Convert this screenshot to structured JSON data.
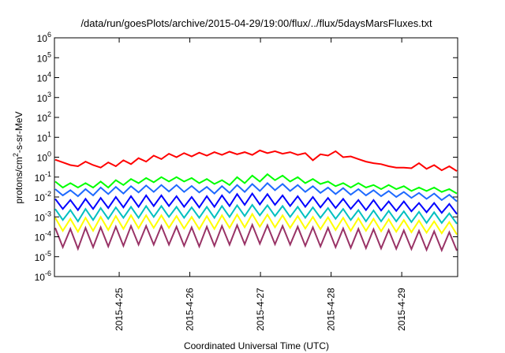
{
  "chart_data": {
    "type": "line",
    "title": "/data/run/goesPlots/archive/2015-04-29/19:00/flux/../flux/5daysMarsFluxes.txt",
    "xlabel": "Coordinated Universal Time (UTC)",
    "ylabel": "protons/cm²-s-sr-MeV",
    "ylabel_parts": {
      "pre": "protons/cm",
      "sup": "2",
      "post": "-s-sr-MeV"
    },
    "x_range": [
      "2015-04-24T02:00",
      "2015-04-29T19:00"
    ],
    "x_ticks": [
      "2015-4-25",
      "2015-4-26",
      "2015-4-27",
      "2015-4-28",
      "2015-4-29"
    ],
    "y_scale": "log",
    "ylim": [
      1e-06,
      1000000.0
    ],
    "y_ticks": [
      {
        "base": "10",
        "exp": "-6"
      },
      {
        "base": "10",
        "exp": "-5"
      },
      {
        "base": "10",
        "exp": "-4"
      },
      {
        "base": "10",
        "exp": "-3"
      },
      {
        "base": "10",
        "exp": "-2"
      },
      {
        "base": "10",
        "exp": "-1"
      },
      {
        "base": "10",
        "exp": "0"
      },
      {
        "base": "10",
        "exp": "1"
      },
      {
        "base": "10",
        "exp": "2"
      },
      {
        "base": "10",
        "exp": "3"
      },
      {
        "base": "10",
        "exp": "4"
      },
      {
        "base": "10",
        "exp": "5"
      },
      {
        "base": "10",
        "exp": "6"
      }
    ],
    "grid": false,
    "series": [
      {
        "color": "#ff0000",
        "values": [
          0.75,
          0.55,
          0.4,
          0.35,
          0.6,
          0.4,
          0.3,
          0.55,
          0.35,
          0.7,
          0.45,
          0.9,
          0.6,
          1.2,
          0.8,
          1.5,
          1.0,
          1.6,
          1.1,
          1.7,
          1.2,
          1.8,
          1.3,
          1.9,
          1.4,
          1.8,
          1.3,
          2.2,
          1.6,
          2.0,
          1.5,
          1.8,
          1.3,
          1.6,
          0.7,
          1.4,
          1.2,
          2.0,
          1.0,
          1.1,
          0.8,
          0.6,
          0.5,
          0.45,
          0.35,
          0.3,
          0.3,
          0.28,
          0.5,
          0.26,
          0.4,
          0.22,
          0.35,
          0.2
        ]
      },
      {
        "color": "#00ff00",
        "values": [
          0.06,
          0.03,
          0.05,
          0.03,
          0.05,
          0.03,
          0.06,
          0.03,
          0.07,
          0.04,
          0.08,
          0.05,
          0.09,
          0.055,
          0.1,
          0.06,
          0.1,
          0.06,
          0.09,
          0.05,
          0.08,
          0.045,
          0.07,
          0.04,
          0.1,
          0.05,
          0.12,
          0.06,
          0.14,
          0.07,
          0.12,
          0.06,
          0.1,
          0.05,
          0.08,
          0.045,
          0.06,
          0.035,
          0.05,
          0.03,
          0.05,
          0.03,
          0.04,
          0.025,
          0.04,
          0.025,
          0.035,
          0.02,
          0.03,
          0.02,
          0.03,
          0.018,
          0.025,
          0.015
        ]
      },
      {
        "color": "#1e6aff",
        "values": [
          0.025,
          0.012,
          0.022,
          0.011,
          0.025,
          0.012,
          0.03,
          0.014,
          0.032,
          0.015,
          0.035,
          0.017,
          0.038,
          0.018,
          0.04,
          0.019,
          0.04,
          0.018,
          0.036,
          0.017,
          0.032,
          0.015,
          0.035,
          0.016,
          0.04,
          0.018,
          0.045,
          0.02,
          0.05,
          0.022,
          0.045,
          0.02,
          0.04,
          0.018,
          0.035,
          0.016,
          0.03,
          0.014,
          0.028,
          0.013,
          0.025,
          0.012,
          0.022,
          0.011,
          0.02,
          0.01,
          0.018,
          0.009,
          0.016,
          0.008,
          0.015,
          0.007,
          0.013,
          0.006
        ]
      },
      {
        "color": "#0000ff",
        "values": [
          0.008,
          0.0025,
          0.007,
          0.0022,
          0.008,
          0.0025,
          0.009,
          0.0028,
          0.01,
          0.003,
          0.011,
          0.0032,
          0.012,
          0.0035,
          0.012,
          0.0035,
          0.011,
          0.0032,
          0.01,
          0.003,
          0.011,
          0.0032,
          0.012,
          0.0035,
          0.014,
          0.004,
          0.015,
          0.0042,
          0.014,
          0.004,
          0.012,
          0.0035,
          0.011,
          0.0032,
          0.01,
          0.003,
          0.009,
          0.0028,
          0.008,
          0.0025,
          0.007,
          0.0022,
          0.007,
          0.0021,
          0.006,
          0.002,
          0.006,
          0.0019,
          0.005,
          0.0017,
          0.005,
          0.0016,
          0.0045,
          0.0014
        ]
      },
      {
        "color": "#00c0c0",
        "values": [
          0.0025,
          0.0007,
          0.0022,
          0.0006,
          0.0025,
          0.0007,
          0.0028,
          0.0008,
          0.003,
          0.0009,
          0.0032,
          0.0009,
          0.0035,
          0.001,
          0.0035,
          0.001,
          0.0032,
          0.0009,
          0.003,
          0.0009,
          0.0032,
          0.0009,
          0.0035,
          0.001,
          0.0038,
          0.0011,
          0.004,
          0.0012,
          0.0038,
          0.0011,
          0.0035,
          0.001,
          0.0032,
          0.0009,
          0.003,
          0.0009,
          0.0028,
          0.0008,
          0.0025,
          0.0007,
          0.0022,
          0.0006,
          0.0021,
          0.0006,
          0.002,
          0.0006,
          0.0019,
          0.00055,
          0.0018,
          0.0005,
          0.0017,
          0.0005,
          0.0015,
          0.00045
        ]
      },
      {
        "color": "#ffff00",
        "values": [
          0.0009,
          0.0002,
          0.0008,
          0.00018,
          0.0009,
          0.0002,
          0.001,
          0.00022,
          0.0011,
          0.00025,
          0.0012,
          0.00027,
          0.0012,
          0.00028,
          0.0012,
          0.00028,
          0.0011,
          0.00026,
          0.001,
          0.00024,
          0.0011,
          0.00025,
          0.0012,
          0.00028,
          0.0013,
          0.0003,
          0.0014,
          0.00032,
          0.0013,
          0.0003,
          0.0012,
          0.00028,
          0.0011,
          0.00026,
          0.001,
          0.00024,
          0.00095,
          0.00022,
          0.0009,
          0.0002,
          0.00085,
          0.0002,
          0.0008,
          0.00019,
          0.00075,
          0.00018,
          0.0007,
          0.00017,
          0.00065,
          0.00016,
          0.0006,
          0.00015,
          0.00055,
          0.00013
        ]
      },
      {
        "color": "#993366",
        "values": [
          0.00028,
          3e-05,
          0.00025,
          2.5e-05,
          0.00028,
          3e-05,
          0.0003,
          3.3e-05,
          0.00032,
          3.5e-05,
          0.00035,
          4e-05,
          0.00035,
          4e-05,
          0.00035,
          4e-05,
          0.00032,
          3.5e-05,
          0.0003,
          3.3e-05,
          0.00032,
          3.5e-05,
          0.00035,
          4e-05,
          0.00038,
          4.2e-05,
          0.0004,
          4.5e-05,
          0.00038,
          4.2e-05,
          0.00035,
          4e-05,
          0.00032,
          3.5e-05,
          0.0003,
          3.3e-05,
          0.00028,
          3e-05,
          0.00026,
          2.8e-05,
          0.00025,
          2.7e-05,
          0.00024,
          2.6e-05,
          0.00022,
          2.5e-05,
          0.00021,
          2.4e-05,
          0.0002,
          2.2e-05,
          0.00019,
          2.1e-05,
          0.00017,
          2e-05
        ]
      }
    ]
  }
}
